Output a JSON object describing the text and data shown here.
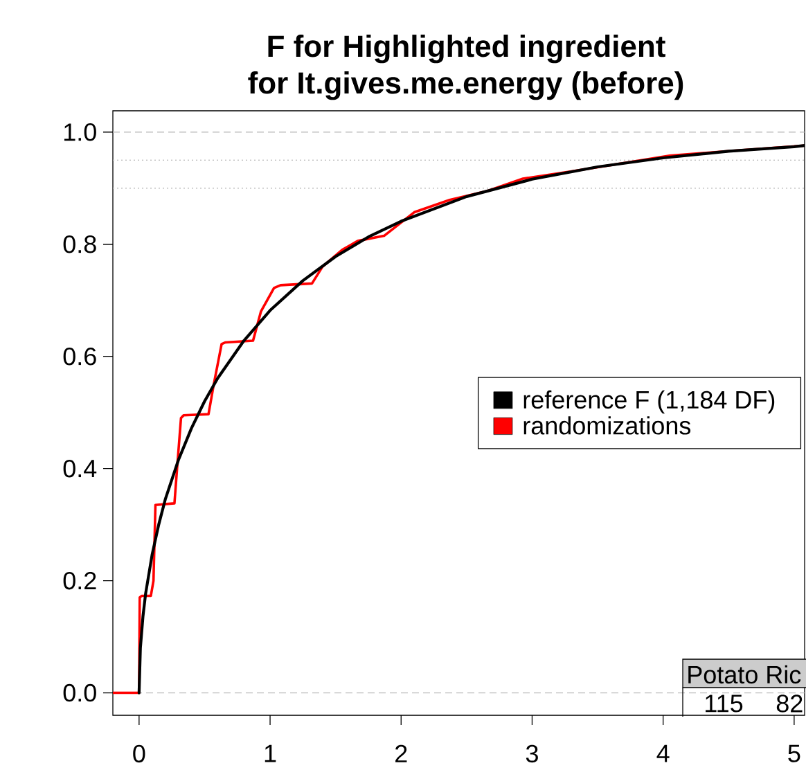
{
  "chart_data": {
    "type": "line",
    "title": "F for Highlighted ingredient",
    "subtitle": "for  It.gives.me.energy (before)",
    "xlim": [
      -0.2,
      5.08
    ],
    "ylim": [
      -0.04,
      1.038
    ],
    "xticks": [
      0,
      1,
      2,
      3,
      4,
      5
    ],
    "yticks": [
      {
        "value": 0,
        "label": "0.0"
      },
      {
        "value": 0.2,
        "label": "0.2"
      },
      {
        "value": 0.4,
        "label": "0.4"
      },
      {
        "value": 0.6,
        "label": "0.6"
      },
      {
        "value": 0.8,
        "label": "0.8"
      },
      {
        "value": 1,
        "label": "1.0"
      }
    ],
    "legend": "right",
    "marker": "none",
    "line_style": "solid",
    "ref_lines": [
      {
        "axis": "y",
        "value": 0,
        "color": "#bebebe",
        "line_style": "dashed"
      },
      {
        "axis": "y",
        "value": 1,
        "color": "#bebebe",
        "line_style": "dashed"
      },
      {
        "axis": "y",
        "value": 0.95,
        "color": "#bebebe",
        "line_style": "dotted"
      },
      {
        "axis": "y",
        "value": 0.9,
        "color": "#bebebe",
        "line_style": "dotted"
      }
    ],
    "series": [
      {
        "name": "reference F (1,184 DF)",
        "color": "#000000",
        "x": [
          0,
          0.01,
          0.03,
          0.05,
          0.1,
          0.15,
          0.2,
          0.3,
          0.4,
          0.5,
          0.6,
          0.8,
          1,
          1.25,
          1.5,
          1.75,
          2,
          2.5,
          3,
          3.5,
          4,
          4.5,
          5,
          5.08
        ],
        "values": [
          0,
          0.08,
          0.137,
          0.177,
          0.247,
          0.3,
          0.345,
          0.415,
          0.472,
          0.52,
          0.561,
          0.628,
          0.682,
          0.735,
          0.778,
          0.813,
          0.841,
          0.885,
          0.916,
          0.938,
          0.954,
          0.966,
          0.974,
          0.976
        ]
      },
      {
        "name": "randomizations",
        "color": "#ff0000",
        "x": [
          -0.2,
          0,
          0.005,
          0.02,
          0.09,
          0.11,
          0.125,
          0.27,
          0.29,
          0.32,
          0.34,
          0.53,
          0.57,
          0.63,
          0.66,
          0.87,
          0.93,
          1.03,
          1.08,
          1.32,
          1.4,
          1.55,
          1.67,
          1.87,
          2.1,
          2.37,
          2.66,
          2.93,
          3.3,
          3.6,
          4.05,
          4.5,
          5.08
        ],
        "values": [
          0,
          0,
          0.17,
          0.173,
          0.173,
          0.2,
          0.335,
          0.338,
          0.4,
          0.49,
          0.495,
          0.497,
          0.55,
          0.622,
          0.625,
          0.628,
          0.68,
          0.722,
          0.727,
          0.73,
          0.76,
          0.79,
          0.806,
          0.815,
          0.857,
          0.879,
          0.895,
          0.917,
          0.93,
          0.941,
          0.958,
          0.966,
          0.976
        ]
      }
    ],
    "annotations": [
      "Potato Ric",
      "115",
      "82"
    ]
  }
}
